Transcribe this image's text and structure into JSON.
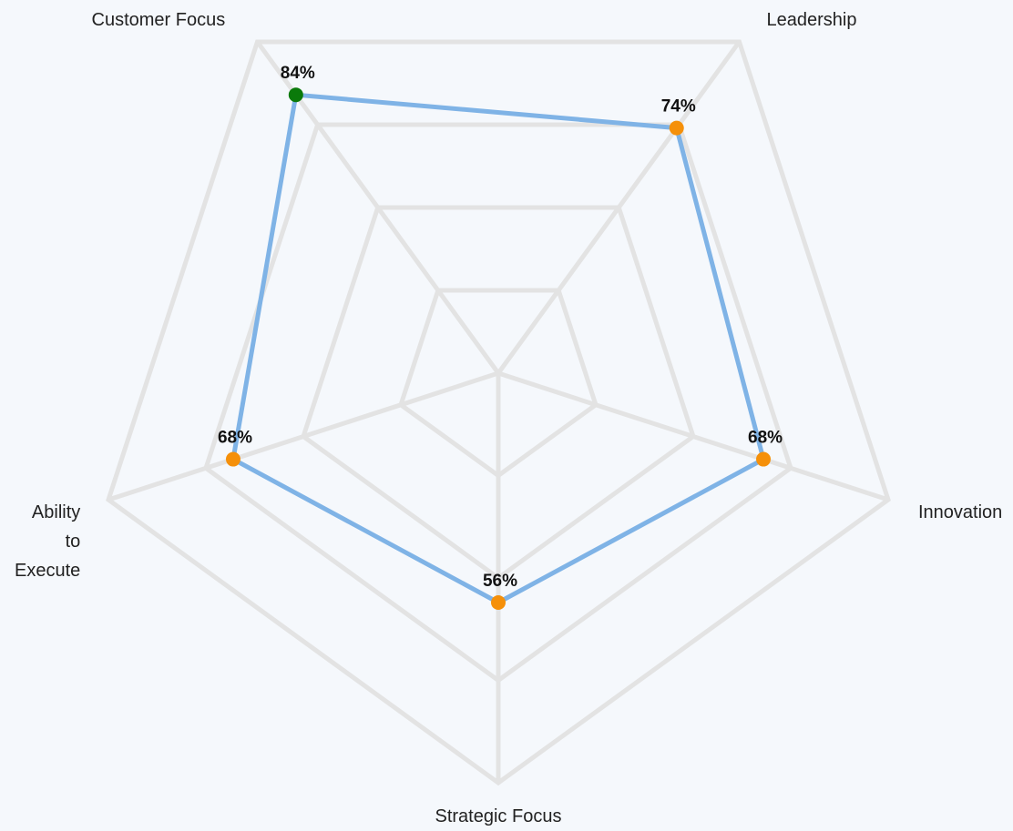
{
  "chart_data": {
    "type": "radar",
    "categories": [
      "Customer Focus",
      "Leadership",
      "Innovation",
      "Strategic Focus",
      "Ability to Execute"
    ],
    "values": [
      84,
      74,
      68,
      56,
      68
    ],
    "value_labels": [
      "84%",
      "74%",
      "68%",
      "56%",
      "68%"
    ],
    "color": "#7fb3e6",
    "point_colors": [
      "#0a7a0a",
      "#f5900a",
      "#f5900a",
      "#f5900a",
      "#f5900a"
    ],
    "rlim": [
      0,
      100
    ],
    "rticks": [
      25,
      50,
      75,
      100
    ],
    "grid": true
  }
}
